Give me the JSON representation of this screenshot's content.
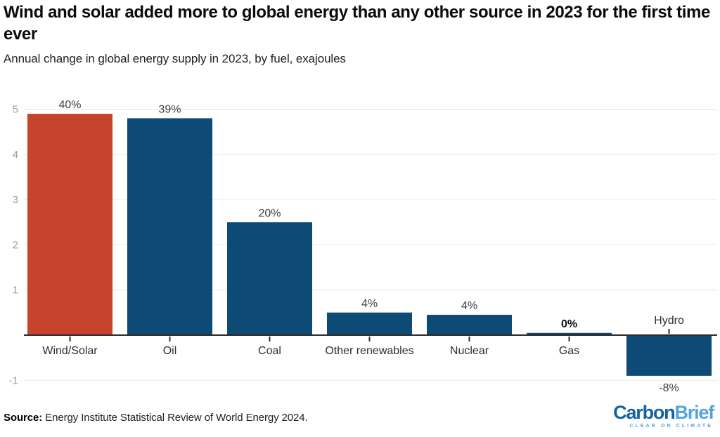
{
  "header": {
    "title": "Wind and solar added more to global energy than any other source in 2023 for the first time ever",
    "subtitle": "Annual change in global energy supply in 2023, by fuel, exajoules"
  },
  "chart_data": {
    "type": "bar",
    "title": "Wind and solar added more to global energy than any other source in 2023 for the first time ever",
    "subtitle": "Annual change in global energy supply in 2023, by fuel, exajoules",
    "xlabel": "",
    "ylabel": "",
    "unit": "exajoules",
    "categories": [
      "Wind/Solar",
      "Oil",
      "Coal",
      "Other renewables",
      "Nuclear",
      "Gas",
      "Hydro"
    ],
    "values": [
      4.9,
      4.8,
      2.5,
      0.5,
      0.45,
      0.05,
      -0.9
    ],
    "pct_labels": [
      "40%",
      "39%",
      "20%",
      "4%",
      "4%",
      "0%",
      "-8%"
    ],
    "pct_label_bold": [
      false,
      false,
      false,
      false,
      false,
      true,
      false
    ],
    "bar_colors": [
      "#c7432b",
      "#0d4a75",
      "#0d4a75",
      "#0d4a75",
      "#0d4a75",
      "#0d4a75",
      "#0d4a75"
    ],
    "ylim": [
      -1,
      5
    ],
    "yticks": [
      5,
      4,
      3,
      2,
      1,
      -1
    ],
    "grid": true,
    "legend": "none",
    "colors": {
      "grid": "#e7e7e7",
      "axis": "#2b2b2b",
      "ytick_text": "#9c9c9c",
      "category_text": "#2e2e2e",
      "label_text": "#3d3d3d",
      "label_text_bold": "#111111"
    }
  },
  "footer": {
    "source_label": "Source:",
    "source_text": " Energy Institute Statistical Review of World Energy 2024.",
    "logo": {
      "part1": "Carbon",
      "part2": "Brief",
      "tagline": "CLEAR ON CLIMATE",
      "color_dark": "#15639e",
      "color_light": "#54a4dc"
    }
  }
}
